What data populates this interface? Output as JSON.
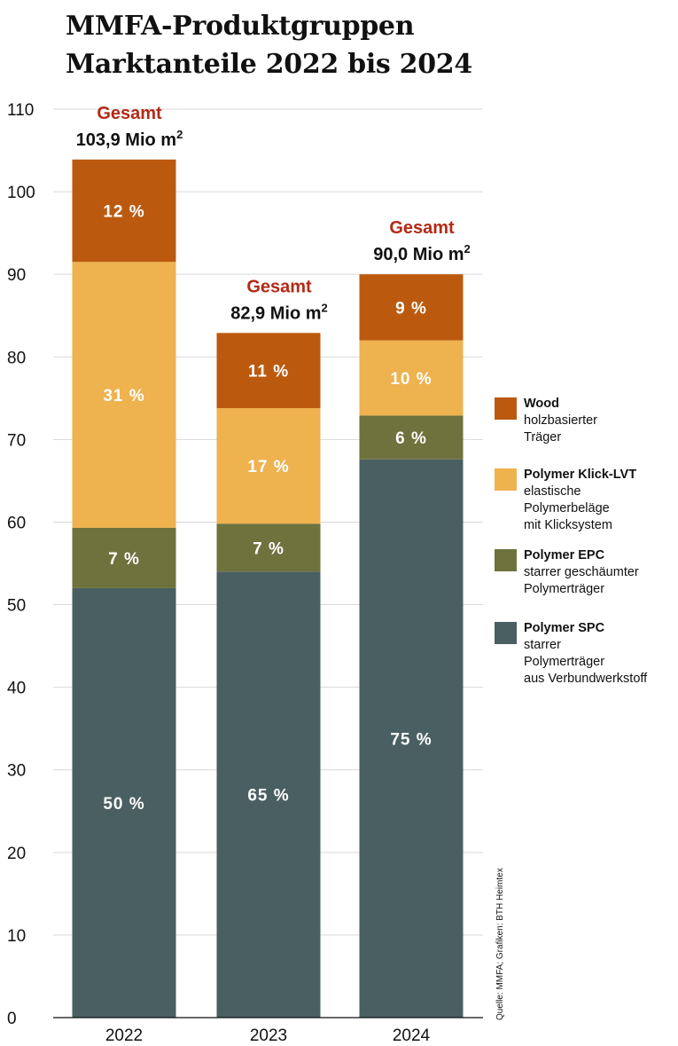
{
  "title": {
    "line1": "MMFA-Produktgruppen",
    "line2": "Marktanteile 2022 bis 2024"
  },
  "chart_data": {
    "type": "bar",
    "stacked": true,
    "title": "MMFA-Produktgruppen Marktanteile 2022 bis 2024",
    "categories": [
      "2022",
      "2023",
      "2024"
    ],
    "ylim": [
      0,
      110
    ],
    "yticks": [
      0,
      10,
      20,
      30,
      40,
      50,
      60,
      70,
      80,
      90,
      100,
      110
    ],
    "grid": true,
    "unit": "Mio m²",
    "totals": [
      103.9,
      82.9,
      90.0
    ],
    "total_label": "Gesamt",
    "total_values": [
      "103,9 Mio m",
      "82,9 Mio m",
      "90,0 Mio m"
    ],
    "total_superscript": "2",
    "series": [
      {
        "name": "Polymer SPC",
        "color": "#4a5f62",
        "percent_labels": [
          "50 %",
          "65 %",
          "75 %"
        ],
        "values": [
          52.0,
          54.0,
          67.6
        ]
      },
      {
        "name": "Polymer EPC",
        "color": "#6e723d",
        "percent_labels": [
          "7 %",
          "7 %",
          "6 %"
        ],
        "values": [
          7.3,
          5.8,
          5.3
        ]
      },
      {
        "name": "Polymer Klick-LVT",
        "color": "#eeb24f",
        "percent_labels": [
          "31 %",
          "17 %",
          "10 %"
        ],
        "values": [
          32.2,
          14.0,
          9.1
        ]
      },
      {
        "name": "Wood",
        "color": "#bb5a0e",
        "percent_labels": [
          "12 %",
          "11 %",
          "9 %"
        ],
        "values": [
          12.4,
          9.1,
          8.0
        ]
      }
    ]
  },
  "legend": [
    {
      "name": "Wood",
      "desc": "holzbasierter\nTräger",
      "color": "#bb5a0e"
    },
    {
      "name": "Polymer Klick-LVT",
      "desc": "elastische\nPolymerbeläge\nmit Klicksystem",
      "color": "#eeb24f"
    },
    {
      "name": "Polymer EPC",
      "desc": "starrer geschäumter\nPolymerträger",
      "color": "#6e723d"
    },
    {
      "name": "Polymer SPC",
      "desc": "starrer\nPolymerträger\naus Verbundwerkstoff",
      "color": "#4a5f62"
    }
  ],
  "source": "Quelle: MMFA; Grafiken: BTH Heimtex"
}
